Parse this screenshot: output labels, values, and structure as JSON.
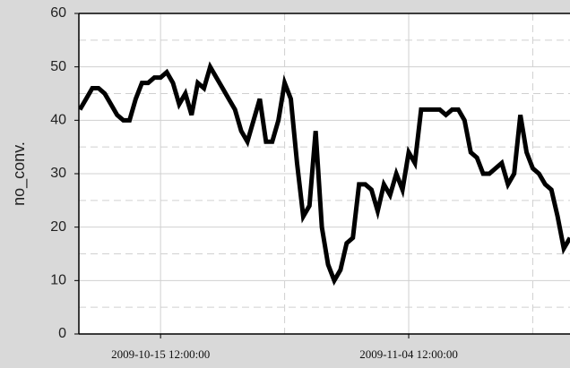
{
  "chart_data": {
    "type": "line",
    "ylabel": "no_conv.",
    "x": [
      "2009-10-09 00:00:00",
      "2009-10-09 12:00:00",
      "2009-10-10 00:00:00",
      "2009-10-10 12:00:00",
      "2009-10-11 00:00:00",
      "2009-10-11 12:00:00",
      "2009-10-12 00:00:00",
      "2009-10-12 12:00:00",
      "2009-10-13 00:00:00",
      "2009-10-13 12:00:00",
      "2009-10-14 00:00:00",
      "2009-10-14 12:00:00",
      "2009-10-15 00:00:00",
      "2009-10-15 12:00:00",
      "2009-10-16 00:00:00",
      "2009-10-16 12:00:00",
      "2009-10-17 00:00:00",
      "2009-10-17 12:00:00",
      "2009-10-18 00:00:00",
      "2009-10-18 12:00:00",
      "2009-10-19 00:00:00",
      "2009-10-19 12:00:00",
      "2009-10-20 00:00:00",
      "2009-10-20 12:00:00",
      "2009-10-21 00:00:00",
      "2009-10-21 12:00:00",
      "2009-10-22 00:00:00",
      "2009-10-22 12:00:00",
      "2009-10-23 00:00:00",
      "2009-10-23 12:00:00",
      "2009-10-24 00:00:00",
      "2009-10-24 12:00:00",
      "2009-10-25 00:00:00",
      "2009-10-25 12:00:00",
      "2009-10-26 00:00:00",
      "2009-10-26 12:00:00",
      "2009-10-27 00:00:00",
      "2009-10-27 12:00:00",
      "2009-10-28 00:00:00",
      "2009-10-28 12:00:00",
      "2009-10-29 00:00:00",
      "2009-10-29 12:00:00",
      "2009-10-30 00:00:00",
      "2009-10-30 12:00:00",
      "2009-10-31 00:00:00",
      "2009-10-31 12:00:00",
      "2009-11-01 00:00:00",
      "2009-11-01 12:00:00",
      "2009-11-02 00:00:00",
      "2009-11-02 12:00:00",
      "2009-11-03 00:00:00",
      "2009-11-03 12:00:00",
      "2009-11-04 00:00:00",
      "2009-11-04 12:00:00",
      "2009-11-05 00:00:00",
      "2009-11-05 12:00:00",
      "2009-11-06 00:00:00",
      "2009-11-06 12:00:00",
      "2009-11-07 00:00:00",
      "2009-11-07 12:00:00",
      "2009-11-08 00:00:00",
      "2009-11-08 12:00:00",
      "2009-11-09 00:00:00",
      "2009-11-09 12:00:00",
      "2009-11-10 00:00:00",
      "2009-11-10 12:00:00",
      "2009-11-11 00:00:00",
      "2009-11-11 12:00:00",
      "2009-11-12 00:00:00",
      "2009-11-12 12:00:00",
      "2009-11-13 00:00:00",
      "2009-11-13 12:00:00",
      "2009-11-14 00:00:00",
      "2009-11-14 12:00:00",
      "2009-11-15 00:00:00",
      "2009-11-15 12:00:00",
      "2009-11-16 00:00:00",
      "2009-11-16 12:00:00",
      "2009-11-17 00:00:00",
      "2009-11-17 12:00:00"
    ],
    "series": [
      {
        "color": "#000000",
        "values": [
          42,
          44,
          46,
          46,
          45,
          43,
          41,
          40,
          40,
          44,
          47,
          47,
          48,
          48,
          49,
          47,
          43,
          45,
          41,
          47,
          46,
          50,
          48,
          46,
          44,
          42,
          38,
          36,
          40,
          44,
          36,
          36,
          40,
          47,
          44,
          32,
          22,
          24,
          38,
          20,
          13,
          10,
          12,
          17,
          18,
          28,
          28,
          27,
          23,
          28,
          26,
          30,
          27,
          34,
          32,
          42,
          42,
          42,
          42,
          41,
          42,
          42,
          40,
          34,
          33,
          30,
          30,
          31,
          32,
          28,
          30,
          41,
          34,
          31,
          30,
          28,
          27,
          22,
          16,
          18
        ]
      }
    ],
    "xlim": [
      "2009-10-08 22:00:00",
      "2009-11-17 12:00:00"
    ],
    "xticks": [
      "2009-10-15 12:00:00",
      "2009-11-04 12:00:00"
    ],
    "x_minor_ticks": [
      "2009-10-25 12:00:00",
      "2009-11-14 12:00:00"
    ],
    "ylim": [
      0,
      60
    ],
    "yticks": [
      0,
      10,
      20,
      30,
      40,
      50,
      60
    ],
    "y_minor_ticks": [
      5,
      15,
      25,
      35,
      45,
      55
    ],
    "grid": true
  }
}
